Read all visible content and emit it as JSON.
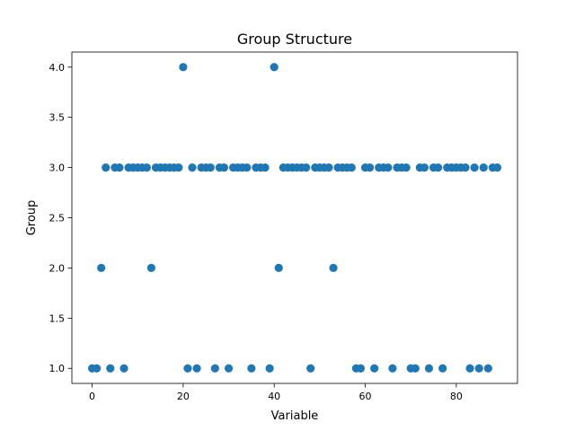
{
  "chart_data": {
    "type": "scatter",
    "title": "Group Structure",
    "xlabel": "Variable",
    "ylabel": "Group",
    "xlim": [
      -4.45,
      93.45
    ],
    "ylim": [
      0.85,
      4.15
    ],
    "xticks": [
      0,
      20,
      40,
      60,
      80
    ],
    "xtick_labels": [
      "0",
      "20",
      "40",
      "60",
      "80"
    ],
    "yticks": [
      1.0,
      1.5,
      2.0,
      2.5,
      3.0,
      3.5,
      4.0
    ],
    "ytick_labels": [
      "1.0",
      "1.5",
      "2.0",
      "2.5",
      "3.0",
      "3.5",
      "4.0"
    ],
    "grid": false,
    "marker_color": "#1f77b4",
    "x": [
      0,
      1,
      2,
      3,
      4,
      5,
      6,
      7,
      8,
      9,
      10,
      11,
      12,
      13,
      14,
      15,
      16,
      17,
      18,
      19,
      20,
      21,
      22,
      23,
      24,
      25,
      26,
      27,
      28,
      29,
      30,
      31,
      32,
      33,
      34,
      35,
      36,
      37,
      38,
      39,
      40,
      41,
      42,
      43,
      44,
      45,
      46,
      47,
      48,
      49,
      50,
      51,
      52,
      53,
      54,
      55,
      56,
      57,
      58,
      59,
      60,
      61,
      62,
      63,
      64,
      65,
      66,
      67,
      68,
      69,
      70,
      71,
      72,
      73,
      74,
      75,
      76,
      77,
      78,
      79,
      80,
      81,
      82,
      83,
      84,
      85,
      86,
      87,
      88,
      89
    ],
    "y": [
      1,
      1,
      2,
      3,
      1,
      3,
      3,
      1,
      3,
      3,
      3,
      3,
      3,
      2,
      3,
      3,
      3,
      3,
      3,
      3,
      4,
      1,
      3,
      1,
      3,
      3,
      3,
      1,
      3,
      3,
      1,
      3,
      3,
      3,
      3,
      1,
      3,
      3,
      3,
      1,
      4,
      2,
      3,
      3,
      3,
      3,
      3,
      3,
      1,
      3,
      3,
      3,
      3,
      2,
      3,
      3,
      3,
      3,
      1,
      1,
      3,
      3,
      1,
      3,
      3,
      3,
      1,
      3,
      3,
      3,
      1,
      1,
      3,
      3,
      1,
      3,
      3,
      1,
      3,
      3,
      3,
      3,
      3,
      1,
      3,
      1,
      3,
      1,
      3,
      3
    ]
  }
}
